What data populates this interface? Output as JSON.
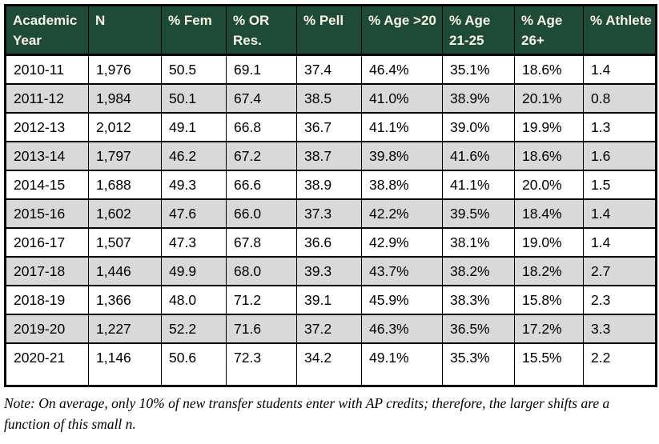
{
  "colors": {
    "header_bg": "#1e4b38",
    "header_text": "#f9f4e4",
    "row_stripe": "#d9d9d9",
    "border": "#000000",
    "body_text": "#000000"
  },
  "table": {
    "headers": [
      "Academic Year",
      "N",
      "% Fem",
      "% OR Res.",
      "% Pell",
      "% Age >20",
      "% Age 21-25",
      "% Age 26+",
      "% Athlete"
    ],
    "rows": [
      [
        "2010-11",
        "1,976",
        "50.5",
        "69.1",
        "37.4",
        "46.4%",
        "35.1%",
        "18.6%",
        "1.4"
      ],
      [
        "2011-12",
        "1,984",
        "50.1",
        "67.4",
        "38.5",
        "41.0%",
        "38.9%",
        "20.1%",
        "0.8"
      ],
      [
        "2012-13",
        "2,012",
        "49.1",
        "66.8",
        "36.7",
        "41.1%",
        "39.0%",
        "19.9%",
        "1.3"
      ],
      [
        "2013-14",
        "1,797",
        "46.2",
        "67.2",
        "38.7",
        "39.8%",
        "41.6%",
        "18.6%",
        "1.6"
      ],
      [
        "2014-15",
        "1,688",
        "49.3",
        "66.6",
        "38.9",
        "38.8%",
        "41.1%",
        "20.0%",
        "1.5"
      ],
      [
        "2015-16",
        "1,602",
        "47.6",
        "66.0",
        "37.3",
        "42.2%",
        "39.5%",
        "18.4%",
        "1.4"
      ],
      [
        "2016-17",
        "1,507",
        "47.3",
        "67.8",
        "36.6",
        "42.9%",
        "38.1%",
        "19.0%",
        "1.4"
      ],
      [
        "2017-18",
        "1,446",
        "49.9",
        "68.0",
        "39.3",
        "43.7%",
        "38.2%",
        "18.2%",
        "2.7"
      ],
      [
        "2018-19",
        "1,366",
        "48.0",
        "71.2",
        "39.1",
        "45.9%",
        "38.3%",
        "15.8%",
        "2.3"
      ],
      [
        "2019-20",
        "1,227",
        "52.2",
        "71.6",
        "37.2",
        "46.3%",
        "36.5%",
        "17.2%",
        "3.3"
      ],
      [
        "2020-21",
        "1,146",
        "50.6",
        "72.3",
        "34.2",
        "49.1%",
        "35.3%",
        "15.5%",
        "2.2"
      ]
    ]
  },
  "note": "Note: On average, only 10% of new transfer students enter with AP credits; therefore, the larger shifts are a function of this small n."
}
